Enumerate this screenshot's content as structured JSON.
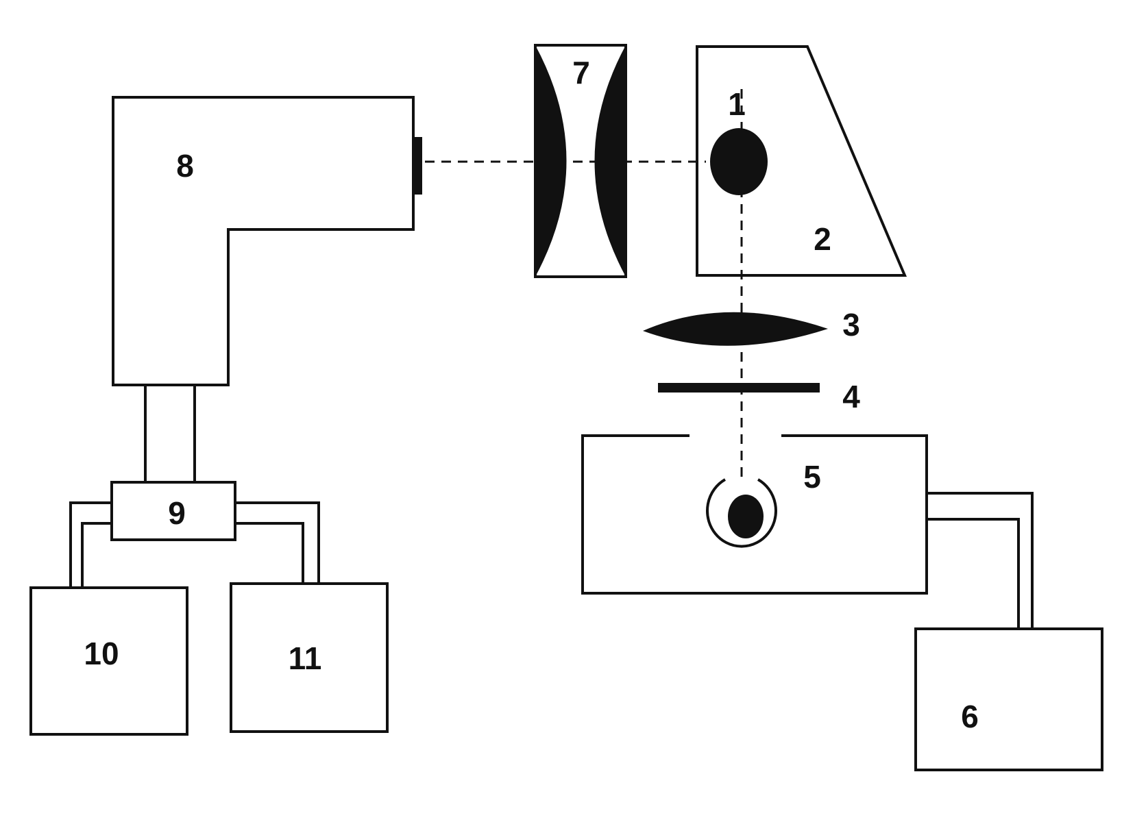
{
  "labels": {
    "sample": "1",
    "prism": "2",
    "lens": "3",
    "filter": "4",
    "source": "5",
    "source_supply": "6",
    "objective": "7",
    "spectrograph": "8",
    "detector_unit": "9",
    "block_10": "10",
    "block_11": "11"
  },
  "colors": {
    "ink": "#111111",
    "background": "#ffffff"
  }
}
